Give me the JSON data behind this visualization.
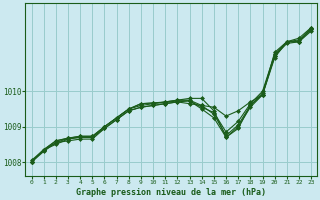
{
  "title": "Graphe pression niveau de la mer (hPa)",
  "background_color": "#cce9f0",
  "line_color": "#1a5c1a",
  "grid_color": "#99cccc",
  "axis_color": "#1a5c1a",
  "xlim": [
    -0.5,
    23.5
  ],
  "ylim": [
    1007.6,
    1012.5
  ],
  "yticks": [
    1008,
    1009,
    1010
  ],
  "xticks": [
    0,
    1,
    2,
    3,
    4,
    5,
    6,
    7,
    8,
    9,
    10,
    11,
    12,
    13,
    14,
    15,
    16,
    17,
    18,
    19,
    20,
    21,
    22,
    23
  ],
  "series": [
    [
      1008.0,
      1008.3,
      1008.55,
      1008.6,
      1008.65,
      1008.65,
      1008.95,
      1009.2,
      1009.45,
      1009.55,
      1009.6,
      1009.65,
      1009.7,
      1009.65,
      1009.6,
      1009.55,
      1009.3,
      1009.45,
      1009.7,
      1009.9,
      1011.0,
      1011.35,
      1011.4,
      1011.7
    ],
    [
      1008.05,
      1008.35,
      1008.5,
      1008.65,
      1008.7,
      1008.7,
      1009.0,
      1009.25,
      1009.5,
      1009.6,
      1009.65,
      1009.7,
      1009.75,
      1009.8,
      1009.8,
      1009.45,
      1008.7,
      1008.95,
      1009.6,
      1009.9,
      1011.1,
      1011.4,
      1011.5,
      1011.8
    ],
    [
      1008.0,
      1008.35,
      1008.55,
      1008.67,
      1008.7,
      1008.7,
      1008.95,
      1009.2,
      1009.45,
      1009.55,
      1009.6,
      1009.65,
      1009.7,
      1009.73,
      1009.55,
      1009.4,
      1008.85,
      1009.15,
      1009.65,
      1010.0,
      1011.05,
      1011.4,
      1011.45,
      1011.75
    ],
    [
      1008.0,
      1008.35,
      1008.6,
      1008.68,
      1008.73,
      1008.73,
      1009.0,
      1009.25,
      1009.5,
      1009.65,
      1009.67,
      1009.7,
      1009.75,
      1009.75,
      1009.6,
      1009.35,
      1008.75,
      1009.05,
      1009.6,
      1009.95,
      1011.0,
      1011.4,
      1011.4,
      1011.8
    ],
    [
      1008.0,
      1008.35,
      1008.6,
      1008.67,
      1008.73,
      1008.73,
      1009.0,
      1009.25,
      1009.5,
      1009.65,
      1009.67,
      1009.68,
      1009.73,
      1009.73,
      1009.5,
      1009.25,
      1008.7,
      1009.0,
      1009.55,
      1009.9,
      1010.95,
      1011.4,
      1011.4,
      1011.75
    ]
  ]
}
